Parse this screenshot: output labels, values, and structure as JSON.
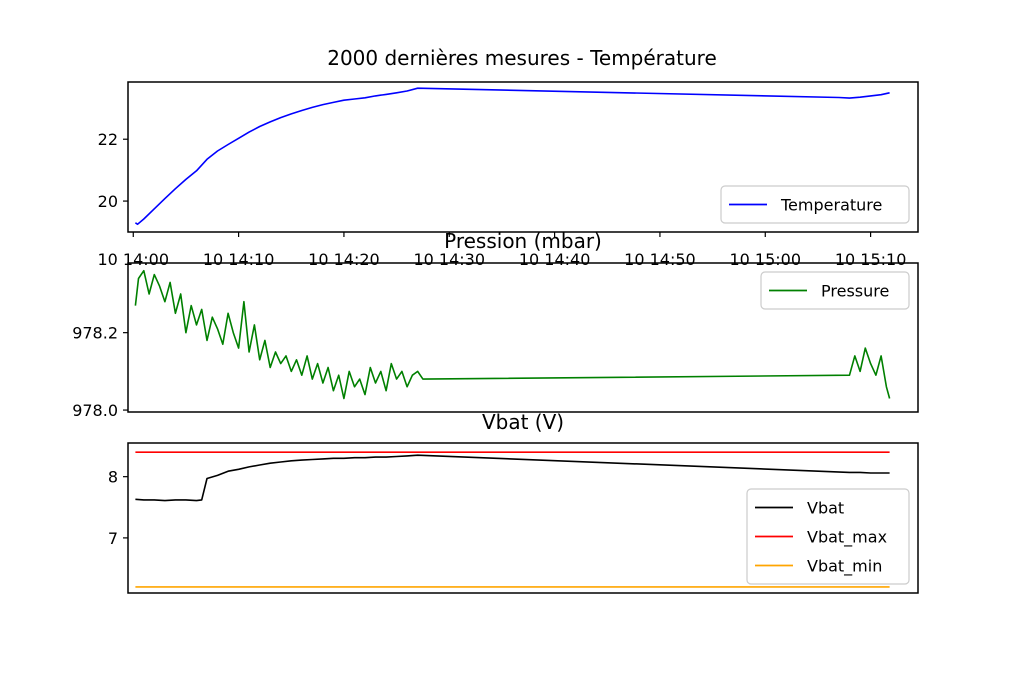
{
  "figure_title": "2000 dernières mesures - Température",
  "chart_data": [
    {
      "type": "line",
      "title": "2000 dernières mesures - Température",
      "xlabel": "",
      "ylabel": "",
      "xlim": [
        "2000-01-10 13:59:30",
        "2000-01-10 15:14:30"
      ],
      "ylim": [
        19.0,
        23.85
      ],
      "yticks": [
        20,
        22
      ],
      "xticks": [
        "2000-01-10 14:00",
        "2000-01-10 14:10",
        "2000-01-10 14:20",
        "2000-01-10 14:30",
        "2000-01-10 14:40",
        "2000-01-10 14:50",
        "2000-01-10 15:00",
        "2000-01-10 15:10"
      ],
      "xtick_labels": [
        "10 14:00",
        "10 14:10",
        "10 14:20",
        "10 14:30",
        "10 14:40",
        "10 14:50",
        "10 15:00",
        "10 15:10"
      ],
      "grid": false,
      "legend": "lower-right",
      "series": [
        {
          "name": "Temperature",
          "color": "#0000ff",
          "x": [
            "14:00:12",
            "14:00:24",
            "14:01:00",
            "14:02:00",
            "14:03:00",
            "14:04:00",
            "14:05:00",
            "14:06:00",
            "14:07:00",
            "14:08:00",
            "14:09:00",
            "14:10:00",
            "14:11:00",
            "14:12:00",
            "14:13:00",
            "14:14:00",
            "14:15:00",
            "14:16:00",
            "14:17:00",
            "14:18:00",
            "14:19:00",
            "14:20:00",
            "14:21:00",
            "14:22:00",
            "14:23:00",
            "14:24:00",
            "14:25:00",
            "14:26:00",
            "14:27:00",
            "15:07:00",
            "15:08:00",
            "15:09:00",
            "15:10:00",
            "15:11:00",
            "15:11:48"
          ],
          "y": [
            19.3,
            19.25,
            19.42,
            19.75,
            20.08,
            20.4,
            20.7,
            20.98,
            21.35,
            21.62,
            21.83,
            22.03,
            22.23,
            22.41,
            22.56,
            22.7,
            22.82,
            22.93,
            23.03,
            23.12,
            23.19,
            23.26,
            23.3,
            23.34,
            23.4,
            23.45,
            23.5,
            23.56,
            23.65,
            23.35,
            23.33,
            23.36,
            23.4,
            23.44,
            23.5
          ]
        }
      ]
    },
    {
      "type": "line",
      "title": "Pression (mbar)",
      "xlabel": "",
      "ylabel": "",
      "xlim": [
        "2000-01-10 13:59:30",
        "2000-01-10 15:14:30"
      ],
      "ylim": [
        977.995,
        978.38
      ],
      "yticks": [
        978.0,
        978.2
      ],
      "ytick_labels": [
        "978.0",
        "978.2"
      ],
      "grid": false,
      "legend": "upper-right",
      "series": [
        {
          "name": "Pressure",
          "color": "#008000",
          "x": [
            "14:00:12",
            "14:00:30",
            "14:01:00",
            "14:01:30",
            "14:02:00",
            "14:02:30",
            "14:03:00",
            "14:03:30",
            "14:04:00",
            "14:04:30",
            "14:05:00",
            "14:05:30",
            "14:06:00",
            "14:06:30",
            "14:07:00",
            "14:07:30",
            "14:08:00",
            "14:08:30",
            "14:09:00",
            "14:09:30",
            "14:10:00",
            "14:10:30",
            "14:11:00",
            "14:11:30",
            "14:12:00",
            "14:12:30",
            "14:13:00",
            "14:13:30",
            "14:14:00",
            "14:14:30",
            "14:15:00",
            "14:15:30",
            "14:16:00",
            "14:16:30",
            "14:17:00",
            "14:17:30",
            "14:18:00",
            "14:18:30",
            "14:19:00",
            "14:19:30",
            "14:20:00",
            "14:20:30",
            "14:21:00",
            "14:21:30",
            "14:22:00",
            "14:22:30",
            "14:23:00",
            "14:23:30",
            "14:24:00",
            "14:24:30",
            "14:25:00",
            "14:25:30",
            "14:26:00",
            "14:26:30",
            "14:27:00",
            "14:27:30",
            "15:08:00",
            "15:08:30",
            "15:09:00",
            "15:09:30",
            "15:10:00",
            "15:10:30",
            "15:11:00",
            "15:11:30",
            "15:11:48"
          ],
          "y": [
            978.27,
            978.34,
            978.36,
            978.3,
            978.35,
            978.32,
            978.28,
            978.33,
            978.25,
            978.3,
            978.2,
            978.27,
            978.22,
            978.26,
            978.18,
            978.24,
            978.21,
            978.17,
            978.25,
            978.2,
            978.16,
            978.28,
            978.15,
            978.22,
            978.13,
            978.18,
            978.11,
            978.15,
            978.12,
            978.14,
            978.1,
            978.13,
            978.09,
            978.14,
            978.08,
            978.12,
            978.07,
            978.11,
            978.05,
            978.09,
            978.03,
            978.1,
            978.06,
            978.08,
            978.04,
            978.11,
            978.07,
            978.1,
            978.05,
            978.12,
            978.08,
            978.1,
            978.06,
            978.09,
            978.1,
            978.08,
            978.09,
            978.14,
            978.1,
            978.16,
            978.12,
            978.09,
            978.14,
            978.06,
            978.03
          ]
        }
      ]
    },
    {
      "type": "line",
      "title": "Vbat (V)",
      "xlabel": "",
      "ylabel": "",
      "xlim": [
        "2000-01-10 13:59:30",
        "2000-01-10 15:14:30"
      ],
      "ylim": [
        6.1,
        8.55
      ],
      "yticks": [
        7,
        8
      ],
      "grid": false,
      "legend": "lower-right",
      "series": [
        {
          "name": "Vbat",
          "color": "#000000",
          "x": [
            "14:00:12",
            "14:01:00",
            "14:02:00",
            "14:03:00",
            "14:04:00",
            "14:05:00",
            "14:06:00",
            "14:06:30",
            "14:07:00",
            "14:08:00",
            "14:09:00",
            "14:10:00",
            "14:11:00",
            "14:12:00",
            "14:13:00",
            "14:14:00",
            "14:15:00",
            "14:16:00",
            "14:17:00",
            "14:18:00",
            "14:19:00",
            "14:20:00",
            "14:21:00",
            "14:22:00",
            "14:23:00",
            "14:24:00",
            "14:25:00",
            "14:26:00",
            "14:27:00",
            "15:08:00",
            "15:09:00",
            "15:10:00",
            "15:11:00",
            "15:11:48"
          ],
          "y": [
            7.63,
            7.62,
            7.62,
            7.61,
            7.62,
            7.62,
            7.61,
            7.62,
            7.97,
            8.02,
            8.09,
            8.12,
            8.16,
            8.19,
            8.22,
            8.24,
            8.26,
            8.27,
            8.28,
            8.29,
            8.3,
            8.3,
            8.31,
            8.31,
            8.32,
            8.32,
            8.33,
            8.34,
            8.35,
            8.07,
            8.07,
            8.06,
            8.06,
            8.06
          ]
        },
        {
          "name": "Vbat_max",
          "color": "#ff0000",
          "x": [
            "14:00:12",
            "15:11:48"
          ],
          "y": [
            8.4,
            8.4
          ]
        },
        {
          "name": "Vbat_min",
          "color": "#ffa500",
          "x": [
            "14:00:12",
            "15:11:48"
          ],
          "y": [
            6.2,
            6.2
          ]
        }
      ]
    }
  ]
}
